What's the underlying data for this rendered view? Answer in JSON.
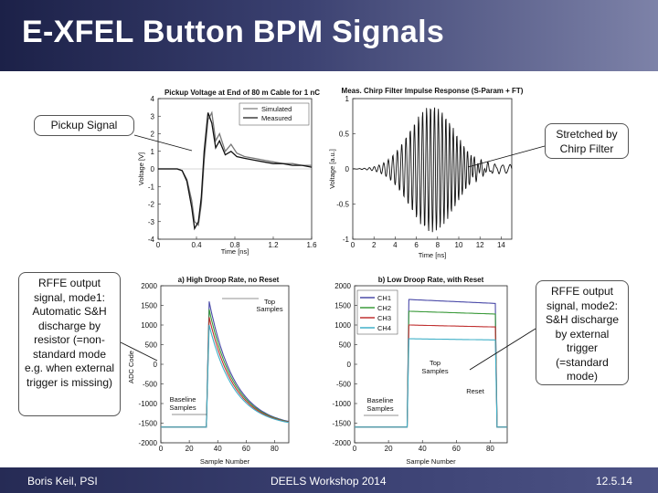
{
  "slide": {
    "title": "E-XFEL Button BPM Signals",
    "footer_left": "Boris Keil, PSI",
    "footer_center": "DEELS Workshop 2014",
    "footer_right": "12.5.14"
  },
  "callouts": {
    "pickup": "Pickup Signal",
    "chirp": "Stretched by Chirp Filter",
    "mode1": "RFFE output signal, mode1: Automatic S&H discharge by resistor (=non-standard mode e.g. when external trigger is missing)",
    "mode2": "RFFE output signal, mode2: S&H discharge by external trigger (=standard mode)"
  },
  "colors": {
    "title_bar_dark": "#1c2148",
    "title_bar_light": "#7d82a8",
    "ch1": "#4a4aa8",
    "ch2": "#3a9a3a",
    "ch3": "#c03030",
    "ch4": "#40b0c8"
  },
  "chart_data": [
    {
      "type": "line",
      "title": "Pickup Voltage at End of 80 m Cable for 1 nC",
      "xlabel": "Time [ns]",
      "ylabel": "Voltage [V]",
      "xlim": [
        0,
        1.6
      ],
      "ylim": [
        -4,
        4
      ],
      "x_ticks": [
        "0",
        "0.4",
        "0.8",
        "1.2",
        "1.6"
      ],
      "x_ticks_all": [
        "0",
        "0.4",
        "0.8",
        "1.2",
        "1.6"
      ],
      "y_ticks": [
        "4",
        "3",
        "2",
        "1",
        "0",
        "-1",
        "-2",
        "-3",
        "-4"
      ],
      "legend": [
        "Simulated",
        "Measured"
      ],
      "legend_position": "top-right",
      "series": [
        {
          "name": "Simulated",
          "x": [
            0,
            0.1,
            0.2,
            0.25,
            0.3,
            0.35,
            0.38,
            0.42,
            0.45,
            0.48,
            0.52,
            0.56,
            0.6,
            0.64,
            0.7,
            0.76,
            0.82,
            0.9,
            1.0,
            1.1,
            1.2,
            1.3,
            1.4,
            1.5,
            1.6
          ],
          "y": [
            0,
            0,
            0,
            -0.1,
            -0.6,
            -1.8,
            -3.0,
            -3.2,
            -2.0,
            0.5,
            2.8,
            3.2,
            1.6,
            2.0,
            1.0,
            1.4,
            0.9,
            0.7,
            0.6,
            0.5,
            0.4,
            0.3,
            0.3,
            0.2,
            0.2
          ]
        },
        {
          "name": "Measured",
          "x": [
            0,
            0.1,
            0.2,
            0.25,
            0.3,
            0.35,
            0.38,
            0.42,
            0.45,
            0.48,
            0.52,
            0.56,
            0.6,
            0.64,
            0.7,
            0.76,
            0.82,
            0.9,
            1.0,
            1.1,
            1.2,
            1.3,
            1.4,
            1.5,
            1.6
          ],
          "y": [
            0,
            0,
            0,
            -0.1,
            -0.7,
            -2.2,
            -3.4,
            -3.0,
            -1.6,
            1.0,
            3.2,
            2.6,
            1.2,
            1.6,
            0.8,
            1.0,
            0.7,
            0.6,
            0.5,
            0.4,
            0.3,
            0.3,
            0.2,
            0.2,
            0.1
          ]
        }
      ]
    },
    {
      "type": "line",
      "title": "Meas. Chirp Filter Impulse Response (S-Param + FT)",
      "xlabel": "Time [ns]",
      "ylabel": "Voltage [a.u.]",
      "xlim": [
        0,
        15
      ],
      "ylim": [
        -1,
        1
      ],
      "x_ticks": [
        "0",
        "2",
        "4",
        "6",
        "8",
        "10",
        "12",
        "14"
      ],
      "y_ticks": [
        "1",
        "0.5",
        "0",
        "-0.5",
        "-1"
      ],
      "description_values": {
        "carrier_period_ns": 0.5,
        "envelope_peak_ns": 7.5,
        "envelope_peak_amplitude": 0.9
      }
    },
    {
      "type": "line",
      "title": "a) High Droop Rate, no Reset",
      "xlabel": "Sample Number",
      "ylabel": "ADC Code",
      "xlim": [
        0,
        90
      ],
      "ylim": [
        -2000,
        2000
      ],
      "x_ticks": [
        "0",
        "20",
        "40",
        "60",
        "80"
      ],
      "y_ticks": [
        "2000",
        "1500",
        "1000",
        "500",
        "0",
        "-500",
        "-1000",
        "-1500",
        "-2000"
      ],
      "annotations": [
        "Top Samples",
        "Baseline Samples"
      ],
      "series": [
        {
          "name": "CH1",
          "peak": 1600,
          "baseline": -1600,
          "peak_sample": 34
        },
        {
          "name": "CH2",
          "peak": 1400,
          "baseline": -1600,
          "peak_sample": 34
        },
        {
          "name": "CH3",
          "peak": 1200,
          "baseline": -1600,
          "peak_sample": 34
        },
        {
          "name": "CH4",
          "peak": 1000,
          "baseline": -1600,
          "peak_sample": 34
        }
      ]
    },
    {
      "type": "line",
      "title": "b) Low Droop Rate, with Reset",
      "xlabel": "Sample Number",
      "ylabel": "",
      "xlim": [
        0,
        90
      ],
      "ylim": [
        -2000,
        2000
      ],
      "x_ticks": [
        "0",
        "20",
        "40",
        "60",
        "80"
      ],
      "y_ticks": [
        "2000",
        "1500",
        "1000",
        "500",
        "0",
        "-500",
        "-1000",
        "-1500",
        "-2000"
      ],
      "legend": [
        "CH1",
        "CH2",
        "CH3",
        "CH4"
      ],
      "legend_position": "top-left",
      "annotations": [
        "Top Samples",
        "Baseline Samples",
        "Reset"
      ],
      "series": [
        {
          "name": "CH1",
          "top_start": 1650,
          "top_end": 1550,
          "baseline": -1600,
          "rise_sample": 32,
          "reset_sample": 83
        },
        {
          "name": "CH2",
          "top_start": 1350,
          "top_end": 1280,
          "baseline": -1600,
          "rise_sample": 32,
          "reset_sample": 83
        },
        {
          "name": "CH3",
          "top_start": 1000,
          "top_end": 950,
          "baseline": -1600,
          "rise_sample": 32,
          "reset_sample": 83
        },
        {
          "name": "CH4",
          "top_start": 650,
          "top_end": 620,
          "baseline": -1600,
          "rise_sample": 32,
          "reset_sample": 83
        }
      ]
    }
  ]
}
